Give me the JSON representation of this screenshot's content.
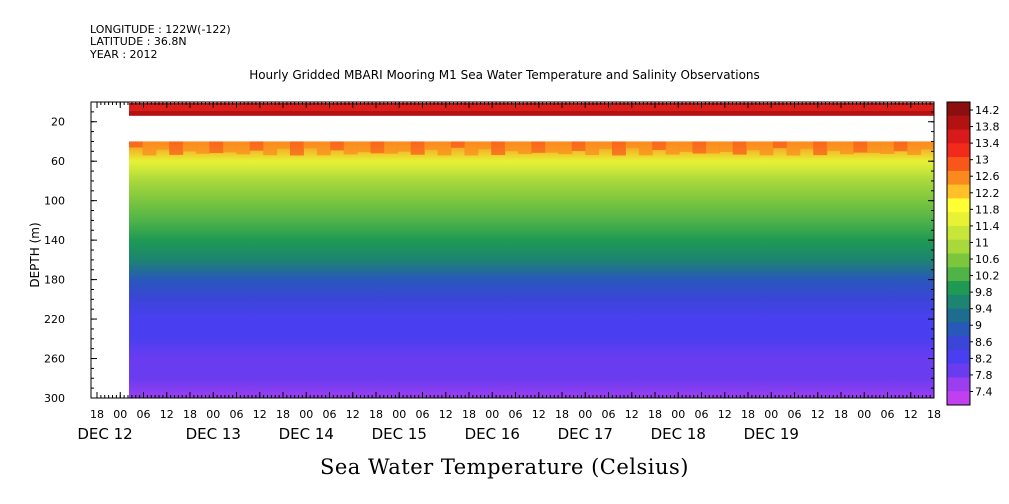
{
  "header": {
    "longitude": "LONGITUDE : 122W(-122)",
    "latitude": "LATITUDE : 36.8N",
    "year": "YEAR : 2012"
  },
  "chart_data": {
    "type": "heatmap",
    "title": "Hourly Gridded MBARI Mooring M1 Sea Water Temperature and Salinity Observations",
    "subtitle": "Sea Water Temperature (Celsius)",
    "ylabel": "DEPTH (m)",
    "xlabel": "",
    "y_reversed": true,
    "ylim": [
      300,
      0
    ],
    "y_ticks": [
      20,
      60,
      100,
      140,
      180,
      220,
      260,
      300
    ],
    "x_hour_ticks": [
      "18",
      "00",
      "06",
      "12",
      "18",
      "00",
      "06",
      "12",
      "18",
      "00",
      "06",
      "12",
      "18",
      "00",
      "06",
      "12",
      "18",
      "00",
      "06",
      "12",
      "18",
      "00",
      "06",
      "12",
      "18",
      "00",
      "06",
      "12",
      "18",
      "00",
      "06",
      "12",
      "18",
      "00",
      "06",
      "12",
      "18"
    ],
    "x_day_labels": [
      "DEC 12",
      "DEC 13",
      "DEC 14",
      "DEC 15",
      "DEC 16",
      "DEC 17",
      "DEC 18",
      "DEC 19"
    ],
    "colorbar": {
      "labels": [
        "14.2",
        "13.8",
        "13.4",
        "13",
        "12.6",
        "12.2",
        "11.8",
        "11.4",
        "11",
        "10.6",
        "10.2",
        "9.8",
        "9.4",
        "9",
        "8.6",
        "8.2",
        "7.8",
        "7.4"
      ],
      "colors": [
        "#8b0f0f",
        "#b31212",
        "#d81a1a",
        "#f22a1c",
        "#f9561a",
        "#fb8a1e",
        "#ffc02a",
        "#ffff33",
        "#e7f235",
        "#c8e63a",
        "#a8d83c",
        "#7cc63e",
        "#4fb348",
        "#1f9a54",
        "#1c8470",
        "#1f6d8e",
        "#2858ba",
        "#3b45d8",
        "#4a3ff0",
        "#6a3cf0",
        "#9a3ef0",
        "#c040f0"
      ]
    },
    "depth_profile": [
      {
        "depth": 10,
        "temp": 13.9
      },
      {
        "depth": 20,
        "temp": null
      },
      {
        "depth": 40,
        "temp": 12.6
      },
      {
        "depth": 60,
        "temp": 11.6
      },
      {
        "depth": 80,
        "temp": 11.0
      },
      {
        "depth": 100,
        "temp": 10.6
      },
      {
        "depth": 120,
        "temp": 10.2
      },
      {
        "depth": 140,
        "temp": 9.9
      },
      {
        "depth": 160,
        "temp": 9.5
      },
      {
        "depth": 180,
        "temp": 9.1
      },
      {
        "depth": 200,
        "temp": 8.8
      },
      {
        "depth": 220,
        "temp": 8.5
      },
      {
        "depth": 240,
        "temp": 8.3
      },
      {
        "depth": 260,
        "temp": 8.1
      },
      {
        "depth": 280,
        "temp": 7.9
      },
      {
        "depth": 300,
        "temp": 7.7
      }
    ]
  }
}
